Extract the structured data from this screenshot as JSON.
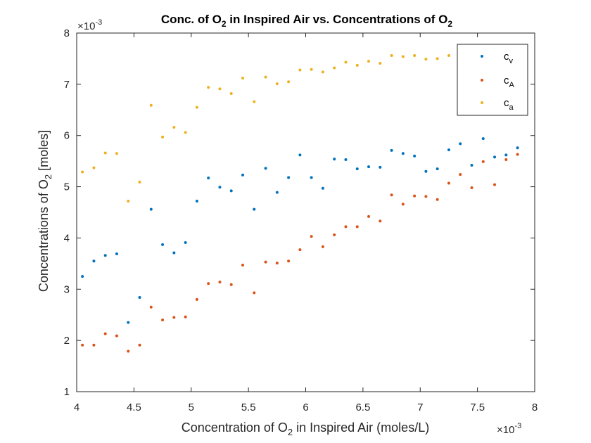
{
  "chart_data": {
    "type": "scatter",
    "title": "Conc. of O2 in Inspired Air vs. Concentrations of O2",
    "title_parts": {
      "a": "Conc. of O",
      "b": "2",
      "c": " in Inspired Air vs. Concentrations of O",
      "d": "2"
    },
    "xlabel": "Concentration of O2 in Inspired Air (moles/L)",
    "xlabel_parts": {
      "a": "Concentration of O",
      "b": "2",
      "c": " in Inspired Air (moles/L)"
    },
    "ylabel": "Concentrations of O2 [moles]",
    "ylabel_parts": {
      "a": "Concentrations of O",
      "b": "2",
      "c": " [moles]"
    },
    "x_exponent": "×10",
    "x_exponent_power": "-3",
    "y_exponent": "×10",
    "y_exponent_power": "-3",
    "xlim": [
      4,
      8
    ],
    "ylim": [
      1,
      8
    ],
    "x_ticks": [
      "4",
      "4.5",
      "5",
      "5.5",
      "6",
      "6.5",
      "7",
      "7.5",
      "8"
    ],
    "y_ticks": [
      "1",
      "2",
      "3",
      "4",
      "5",
      "6",
      "7",
      "8"
    ],
    "grid": false,
    "legend_position": "top-right",
    "x": [
      4.05,
      4.15,
      4.25,
      4.35,
      4.45,
      4.55,
      4.65,
      4.75,
      4.85,
      4.95,
      5.05,
      5.15,
      5.25,
      5.35,
      5.45,
      5.55,
      5.65,
      5.75,
      5.85,
      5.95,
      6.05,
      6.15,
      6.25,
      6.35,
      6.45,
      6.55,
      6.65,
      6.75,
      6.85,
      6.95,
      7.05,
      7.15,
      7.25,
      7.35,
      7.45,
      7.55,
      7.65,
      7.75,
      7.85
    ],
    "series": [
      {
        "name": "c_v",
        "legend_main": "c",
        "legend_sub": "v",
        "color": "#0072BD",
        "values": [
          3.25,
          3.55,
          3.66,
          3.69,
          2.35,
          2.84,
          4.56,
          3.87,
          3.71,
          3.91,
          4.72,
          5.17,
          4.99,
          4.92,
          5.23,
          4.56,
          5.36,
          4.89,
          5.18,
          5.62,
          5.18,
          4.97,
          5.54,
          5.53,
          5.35,
          5.39,
          5.38,
          5.71,
          5.65,
          5.6,
          5.3,
          5.35,
          5.72,
          5.84,
          5.42,
          5.94,
          5.58,
          5.62,
          5.76
        ]
      },
      {
        "name": "c_A",
        "legend_main": "c",
        "legend_sub": "A",
        "color": "#D95319",
        "values": [
          1.91,
          1.91,
          2.13,
          2.09,
          1.79,
          1.91,
          2.65,
          2.4,
          2.45,
          2.46,
          2.8,
          3.11,
          3.14,
          3.09,
          3.47,
          2.93,
          3.53,
          3.51,
          3.55,
          3.77,
          4.03,
          3.83,
          4.06,
          4.22,
          4.22,
          4.42,
          4.33,
          4.84,
          4.66,
          4.82,
          4.81,
          4.75,
          5.07,
          5.24,
          4.98,
          5.49,
          5.04,
          5.53,
          5.63
        ]
      },
      {
        "name": "c_a",
        "legend_main": "c",
        "legend_sub": "a",
        "color": "#EDB120",
        "values": [
          5.29,
          5.37,
          5.66,
          5.65,
          4.72,
          5.09,
          6.59,
          5.97,
          6.16,
          6.06,
          6.55,
          6.94,
          6.91,
          6.82,
          7.12,
          6.66,
          7.14,
          7.01,
          7.05,
          7.28,
          7.29,
          7.24,
          7.32,
          7.43,
          7.37,
          7.45,
          7.41,
          7.56,
          7.54,
          7.56,
          7.49,
          7.5,
          7.56,
          7.58,
          7.62,
          7.65,
          7.66,
          7.68,
          7.7
        ]
      }
    ]
  }
}
